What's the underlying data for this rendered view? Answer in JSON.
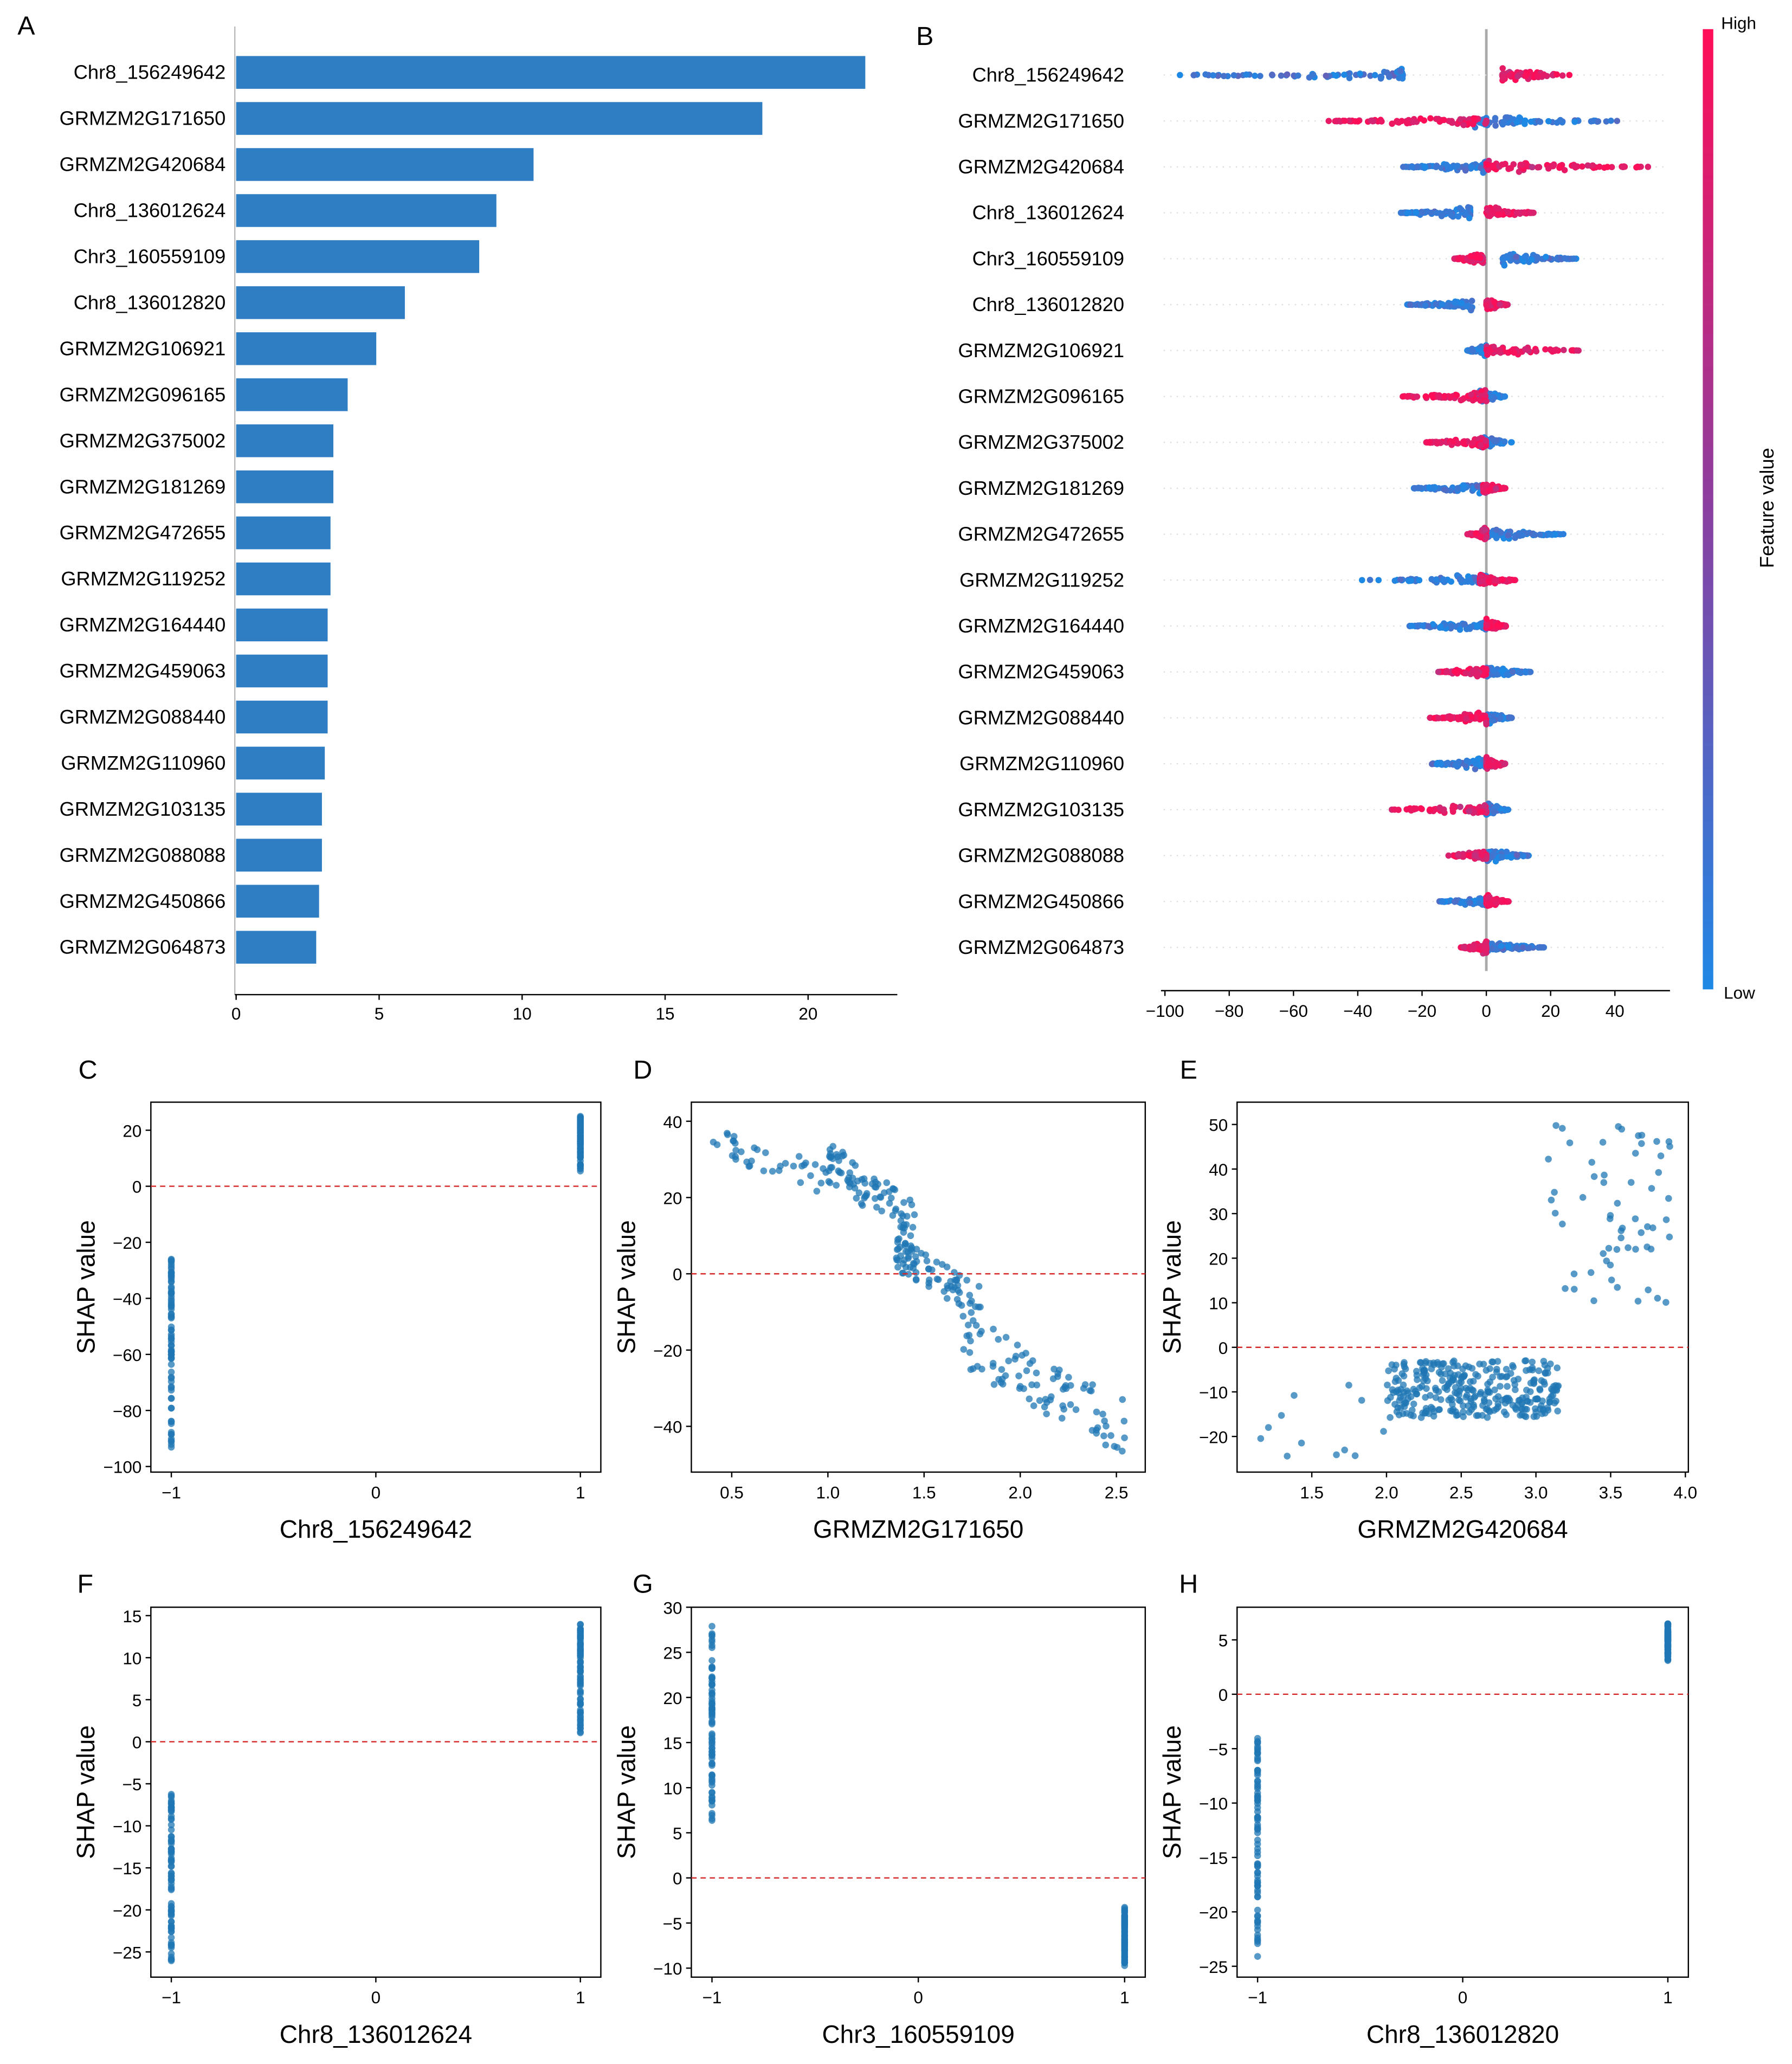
{
  "panel_letters": [
    "A",
    "B",
    "C",
    "D",
    "E",
    "F",
    "G",
    "H"
  ],
  "chart_data": [
    {
      "type": "bar",
      "panel": "A",
      "orientation": "horizontal",
      "categories": [
        "Chr8_156249642",
        "GRMZM2G171650",
        "GRMZM2G420684",
        "Chr8_136012624",
        "Chr3_160559109",
        "Chr8_136012820",
        "GRMZM2G106921",
        "GRMZM2G096165",
        "GRMZM2G375002",
        "GRMZM2G181269",
        "GRMZM2G472655",
        "GRMZM2G119252",
        "GRMZM2G164440",
        "GRMZM2G459063",
        "GRMZM2G088440",
        "GRMZM2G110960",
        "GRMZM2G103135",
        "GRMZM2G088088",
        "GRMZM2G450866",
        "GRMZM2G064873"
      ],
      "values": [
        22.0,
        18.4,
        10.4,
        9.1,
        8.5,
        5.9,
        4.9,
        3.9,
        3.4,
        3.4,
        3.3,
        3.3,
        3.2,
        3.2,
        3.2,
        3.1,
        3.0,
        3.0,
        2.9,
        2.8
      ],
      "xticks": [
        "0",
        "5",
        "10",
        "15",
        "20"
      ],
      "xlim": [
        0,
        23
      ],
      "color": "#2f7ec3"
    },
    {
      "type": "scatter",
      "subtype": "beeswarm",
      "panel": "B",
      "features": [
        "Chr8_156249642",
        "GRMZM2G171650",
        "GRMZM2G420684",
        "Chr8_136012624",
        "Chr3_160559109",
        "Chr8_136012820",
        "GRMZM2G106921",
        "GRMZM2G096165",
        "GRMZM2G375002",
        "GRMZM2G181269",
        "GRMZM2G472655",
        "GRMZM2G119252",
        "GRMZM2G164440",
        "GRMZM2G459063",
        "GRMZM2G088440",
        "GRMZM2G110960",
        "GRMZM2G103135",
        "GRMZM2G088088",
        "GRMZM2G450866",
        "GRMZM2G064873"
      ],
      "low_range": [
        [
          -96,
          -26
        ],
        [
          -5,
          42
        ],
        [
          -26,
          0
        ],
        [
          -27,
          -5
        ],
        [
          5,
          28
        ],
        [
          -25,
          -4
        ],
        [
          -6,
          0
        ],
        [
          -2,
          6
        ],
        [
          -2,
          8
        ],
        [
          -23,
          0
        ],
        [
          0,
          25
        ],
        [
          -40,
          0
        ],
        [
          -24,
          0
        ],
        [
          0,
          14
        ],
        [
          0,
          8
        ],
        [
          -18,
          0
        ],
        [
          0,
          7
        ],
        [
          0,
          14
        ],
        [
          -15,
          0
        ],
        [
          0,
          18
        ]
      ],
      "high_range": [
        [
          5,
          26
        ],
        [
          -50,
          0
        ],
        [
          0,
          51
        ],
        [
          0,
          15
        ],
        [
          -10,
          -1
        ],
        [
          0,
          7
        ],
        [
          0,
          29
        ],
        [
          -27,
          0
        ],
        [
          -19,
          0
        ],
        [
          -1,
          6
        ],
        [
          -6,
          0
        ],
        [
          -2,
          9
        ],
        [
          0,
          7
        ],
        [
          -15,
          0
        ],
        [
          -18,
          0
        ],
        [
          0,
          6
        ],
        [
          -30,
          0
        ],
        [
          -12,
          0
        ],
        [
          0,
          7
        ],
        [
          -8,
          0
        ]
      ],
      "xticks": [
        "−100",
        "−80",
        "−60",
        "−40",
        "−20",
        "0",
        "20",
        "40"
      ],
      "xlim": [
        -103,
        57
      ],
      "colorbar": {
        "label": "Feature value",
        "high": "High",
        "low": "Low",
        "high_color": "#ff0d57",
        "low_color": "#1e88e5"
      }
    },
    {
      "type": "scatter",
      "panel": "C",
      "xlabel": "Chr8_156249642",
      "ylabel": "SHAP value",
      "xlim": [
        -1.1,
        1.1
      ],
      "ylim": [
        -102,
        30
      ],
      "xticks": [
        "−1",
        "0",
        "1"
      ],
      "xtickvals": [
        -1,
        0,
        1
      ],
      "yticks": [
        "20",
        "0",
        "−20",
        "−40",
        "−60",
        "−80",
        "−100"
      ],
      "ytickvals": [
        20,
        0,
        -20,
        -40,
        -60,
        -80,
        -100
      ],
      "clusters": [
        {
          "x": [
            -1,
            -1
          ],
          "y": [
            -95,
            -26
          ],
          "n": 80
        },
        {
          "x": [
            1,
            1
          ],
          "y": [
            5,
            25
          ],
          "n": 80
        }
      ]
    },
    {
      "type": "scatter",
      "panel": "D",
      "xlabel": "GRMZM2G171650",
      "ylabel": "SHAP value",
      "xlim": [
        0.29,
        2.65
      ],
      "ylim": [
        -52,
        45
      ],
      "xticks": [
        "0.5",
        "1.0",
        "1.5",
        "2.0",
        "2.5"
      ],
      "xtickvals": [
        0.5,
        1.0,
        1.5,
        2.0,
        2.5
      ],
      "yticks": [
        "40",
        "20",
        "0",
        "−20",
        "−40"
      ],
      "ytickvals": [
        40,
        20,
        0,
        -20,
        -40
      ],
      "clusters": [
        {
          "x": [
            0.4,
            1.1
          ],
          "y": [
            18,
            40
          ],
          "n": 40
        },
        {
          "x": [
            1.0,
            1.45
          ],
          "y": [
            8,
            35
          ],
          "n": 80
        },
        {
          "x": [
            1.35,
            1.8
          ],
          "y": [
            -12,
            10
          ],
          "n": 80
        },
        {
          "x": [
            1.7,
            2.55
          ],
          "y": [
            -48,
            -10
          ],
          "n": 90
        }
      ]
    },
    {
      "type": "scatter",
      "panel": "E",
      "xlabel": "GRMZM2G420684",
      "ylabel": "SHAP value",
      "xlim": [
        1.0,
        4.02
      ],
      "ylim": [
        -28,
        55
      ],
      "xticks": [
        "1.5",
        "2.0",
        "2.5",
        "3.0",
        "3.5",
        "4.0"
      ],
      "xtickvals": [
        1.5,
        2.0,
        2.5,
        3.0,
        3.5,
        4.0
      ],
      "yticks": [
        "50",
        "40",
        "30",
        "20",
        "10",
        "0",
        "−10",
        "−20"
      ],
      "ytickvals": [
        50,
        40,
        30,
        20,
        10,
        0,
        -10,
        -20
      ],
      "clusters": [
        {
          "x": [
            1.1,
            2.0
          ],
          "y": [
            -25,
            -8
          ],
          "n": 12
        },
        {
          "x": [
            2.0,
            3.15
          ],
          "y": [
            -16,
            -3
          ],
          "n": 320
        },
        {
          "x": [
            3.05,
            3.9
          ],
          "y": [
            10,
            50
          ],
          "n": 60
        }
      ]
    },
    {
      "type": "scatter",
      "panel": "F",
      "xlabel": "Chr8_136012624",
      "ylabel": "SHAP value",
      "xlim": [
        -1.1,
        1.1
      ],
      "ylim": [
        -28,
        16
      ],
      "xticks": [
        "−1",
        "0",
        "1"
      ],
      "xtickvals": [
        -1,
        0,
        1
      ],
      "yticks": [
        "15",
        "10",
        "5",
        "0",
        "−5",
        "−10",
        "−15",
        "−20",
        "−25"
      ],
      "ytickvals": [
        15,
        10,
        5,
        0,
        -5,
        -10,
        -15,
        -20,
        -25
      ],
      "clusters": [
        {
          "x": [
            -1,
            -1
          ],
          "y": [
            -27,
            -6
          ],
          "n": 80
        },
        {
          "x": [
            1,
            1
          ],
          "y": [
            1,
            14
          ],
          "n": 80
        }
      ]
    },
    {
      "type": "scatter",
      "panel": "G",
      "xlabel": "Chr3_160559109",
      "ylabel": "SHAP value",
      "xlim": [
        -1.1,
        1.1
      ],
      "ylim": [
        -11,
        30
      ],
      "xticks": [
        "−1",
        "0",
        "1"
      ],
      "xtickvals": [
        -1,
        0,
        1
      ],
      "yticks": [
        "30",
        "25",
        "20",
        "15",
        "10",
        "5",
        "0",
        "−5",
        "−10"
      ],
      "ytickvals": [
        30,
        25,
        20,
        15,
        10,
        5,
        0,
        -5,
        -10
      ],
      "clusters": [
        {
          "x": [
            -1,
            -1
          ],
          "y": [
            6,
            28
          ],
          "n": 80
        },
        {
          "x": [
            1,
            1
          ],
          "y": [
            -10,
            -3
          ],
          "n": 80
        }
      ]
    },
    {
      "type": "scatter",
      "panel": "H",
      "xlabel": "Chr8_136012820",
      "ylabel": "SHAP value",
      "xlim": [
        -1.1,
        1.1
      ],
      "ylim": [
        -26,
        8
      ],
      "xticks": [
        "−1",
        "0",
        "1"
      ],
      "xtickvals": [
        -1,
        0,
        1
      ],
      "yticks": [
        "5",
        "0",
        "−5",
        "−10",
        "−15",
        "−20",
        "−25"
      ],
      "ytickvals": [
        5,
        0,
        -5,
        -10,
        -15,
        -20,
        -25
      ],
      "clusters": [
        {
          "x": [
            -1,
            -1
          ],
          "y": [
            -25,
            -4
          ],
          "n": 80
        },
        {
          "x": [
            1,
            1
          ],
          "y": [
            3,
            6.5
          ],
          "n": 80
        }
      ]
    }
  ]
}
